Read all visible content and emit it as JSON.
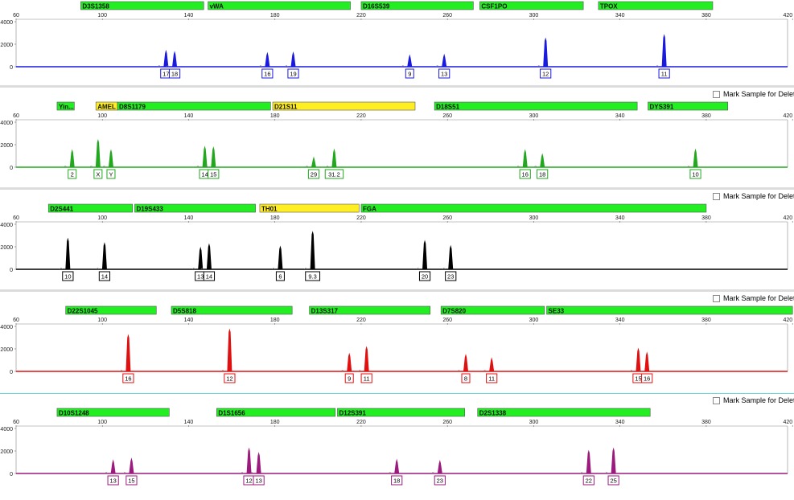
{
  "mark_label": "Mark Sample for Deletion",
  "scale": {
    "ymax": 4000,
    "yticks": [
      0,
      2000,
      4000
    ],
    "xticks": [
      60,
      100,
      140,
      180,
      220,
      260,
      300,
      340,
      380,
      420
    ]
  },
  "colors": {
    "blue": "#1a1adf",
    "green": "#22a81e",
    "black": "#000000",
    "red": "#e01010",
    "purple": "#9c1a7e",
    "bin_green": "#22ee22",
    "bin_yellow": "#ffee22",
    "separator": "#dcdcdc",
    "separator_cyan": "#6fd6de"
  },
  "chart_data": [
    {
      "type": "line",
      "dye": "blue",
      "show_mark": false,
      "xlim": [
        60,
        420
      ],
      "ylim": [
        0,
        4000
      ],
      "loci": [
        {
          "name": "D3S1358",
          "x0": 90,
          "x1": 147,
          "color": "green"
        },
        {
          "name": "vWA",
          "x0": 149,
          "x1": 215,
          "color": "green"
        },
        {
          "name": "D16S539",
          "x0": 220,
          "x1": 272,
          "color": "green"
        },
        {
          "name": "CSF1PO",
          "x0": 275,
          "x1": 323,
          "color": "green"
        },
        {
          "name": "TPOX",
          "x0": 330,
          "x1": 383,
          "color": "green"
        }
      ],
      "peaks": [
        {
          "x": 129.5,
          "h": 1400,
          "label": "17"
        },
        {
          "x": 133.5,
          "h": 1300,
          "label": "18"
        },
        {
          "x": 176.5,
          "h": 1200,
          "label": "16"
        },
        {
          "x": 188.5,
          "h": 1250,
          "label": "19"
        },
        {
          "x": 242.5,
          "h": 1000,
          "label": "9"
        },
        {
          "x": 258.5,
          "h": 1050,
          "label": "13"
        },
        {
          "x": 305.5,
          "h": 2500,
          "label": "12"
        },
        {
          "x": 360.5,
          "h": 2800,
          "label": "11"
        }
      ]
    },
    {
      "type": "line",
      "dye": "green",
      "show_mark": true,
      "xlim": [
        60,
        420
      ],
      "ylim": [
        0,
        4000
      ],
      "loci": [
        {
          "name": "Yin...",
          "x0": 79,
          "x1": 87,
          "color": "green"
        },
        {
          "name": "AMEL",
          "x0": 97,
          "x1": 107,
          "color": "yellow"
        },
        {
          "name": "D8S1179",
          "x0": 107,
          "x1": 178,
          "color": "green"
        },
        {
          "name": "D21S11",
          "x0": 179,
          "x1": 245,
          "color": "yellow"
        },
        {
          "name": "D18S51",
          "x0": 254,
          "x1": 348,
          "color": "green"
        },
        {
          "name": "DYS391",
          "x0": 353,
          "x1": 390,
          "color": "green"
        }
      ],
      "peaks": [
        {
          "x": 86,
          "h": 1500,
          "label": "2"
        },
        {
          "x": 98,
          "h": 2400,
          "label": "X"
        },
        {
          "x": 104,
          "h": 1500,
          "label": "Y"
        },
        {
          "x": 147.5,
          "h": 1800,
          "label": "14"
        },
        {
          "x": 151.5,
          "h": 1750,
          "label": "15"
        },
        {
          "x": 198,
          "h": 850,
          "label": "29"
        },
        {
          "x": 207.5,
          "h": 1550,
          "label": "31.2"
        },
        {
          "x": 296,
          "h": 1500,
          "label": "16"
        },
        {
          "x": 304,
          "h": 1150,
          "label": "18"
        },
        {
          "x": 375,
          "h": 1550,
          "label": "10"
        }
      ]
    },
    {
      "type": "line",
      "dye": "black",
      "show_mark": true,
      "xlim": [
        60,
        420
      ],
      "ylim": [
        0,
        4000
      ],
      "loci": [
        {
          "name": "D2S441",
          "x0": 75,
          "x1": 114,
          "color": "green"
        },
        {
          "name": "D19S433",
          "x0": 115,
          "x1": 171,
          "color": "green"
        },
        {
          "name": "TH01",
          "x0": 173,
          "x1": 219,
          "color": "yellow"
        },
        {
          "name": "FGA",
          "x0": 220,
          "x1": 380,
          "color": "green"
        }
      ],
      "peaks": [
        {
          "x": 84,
          "h": 2700,
          "label": "10"
        },
        {
          "x": 101,
          "h": 2300,
          "label": "14"
        },
        {
          "x": 145.5,
          "h": 1900,
          "label": "13"
        },
        {
          "x": 149.5,
          "h": 2200,
          "label": "14"
        },
        {
          "x": 182.5,
          "h": 2000,
          "label": "6"
        },
        {
          "x": 197.5,
          "h": 3300,
          "label": "9.3"
        },
        {
          "x": 249.5,
          "h": 2500,
          "label": "20"
        },
        {
          "x": 261.5,
          "h": 2050,
          "label": "23"
        }
      ]
    },
    {
      "type": "line",
      "dye": "red",
      "show_mark": true,
      "xlim": [
        60,
        420
      ],
      "ylim": [
        0,
        4000
      ],
      "loci": [
        {
          "name": "D22S1045",
          "x0": 83,
          "x1": 125,
          "color": "green"
        },
        {
          "name": "D5S818",
          "x0": 132,
          "x1": 188,
          "color": "green"
        },
        {
          "name": "D13S317",
          "x0": 196,
          "x1": 252,
          "color": "green"
        },
        {
          "name": "D7S820",
          "x0": 257,
          "x1": 305,
          "color": "green"
        },
        {
          "name": "SE33",
          "x0": 306,
          "x1": 420,
          "color": "green"
        }
      ],
      "peaks": [
        {
          "x": 112,
          "h": 3200,
          "label": "16"
        },
        {
          "x": 159,
          "h": 3700,
          "label": "12"
        },
        {
          "x": 214.5,
          "h": 1550,
          "label": "9"
        },
        {
          "x": 222.5,
          "h": 2150,
          "label": "11"
        },
        {
          "x": 268.5,
          "h": 1450,
          "label": "8"
        },
        {
          "x": 280.5,
          "h": 1150,
          "label": "11"
        },
        {
          "x": 348.5,
          "h": 2000,
          "label": "15"
        },
        {
          "x": 352.5,
          "h": 1650,
          "label": "16"
        }
      ]
    },
    {
      "type": "line",
      "dye": "purple",
      "show_mark": true,
      "xlim": [
        60,
        420
      ],
      "ylim": [
        0,
        4000
      ],
      "loci": [
        {
          "name": "D10S1248",
          "x0": 79,
          "x1": 131,
          "color": "green"
        },
        {
          "name": "D1S1656",
          "x0": 153,
          "x1": 208,
          "color": "green"
        },
        {
          "name": "D12S391",
          "x0": 209,
          "x1": 268,
          "color": "green"
        },
        {
          "name": "D2S1338",
          "x0": 274,
          "x1": 354,
          "color": "green"
        }
      ],
      "peaks": [
        {
          "x": 105,
          "h": 1150,
          "label": "13"
        },
        {
          "x": 113.5,
          "h": 1300,
          "label": "15"
        },
        {
          "x": 168,
          "h": 2200,
          "label": "12"
        },
        {
          "x": 172.5,
          "h": 1800,
          "label": "13"
        },
        {
          "x": 236.5,
          "h": 1200,
          "label": "18"
        },
        {
          "x": 256.5,
          "h": 1100,
          "label": "23"
        },
        {
          "x": 325.5,
          "h": 2000,
          "label": "22"
        },
        {
          "x": 337,
          "h": 2200,
          "label": "25"
        }
      ]
    }
  ]
}
